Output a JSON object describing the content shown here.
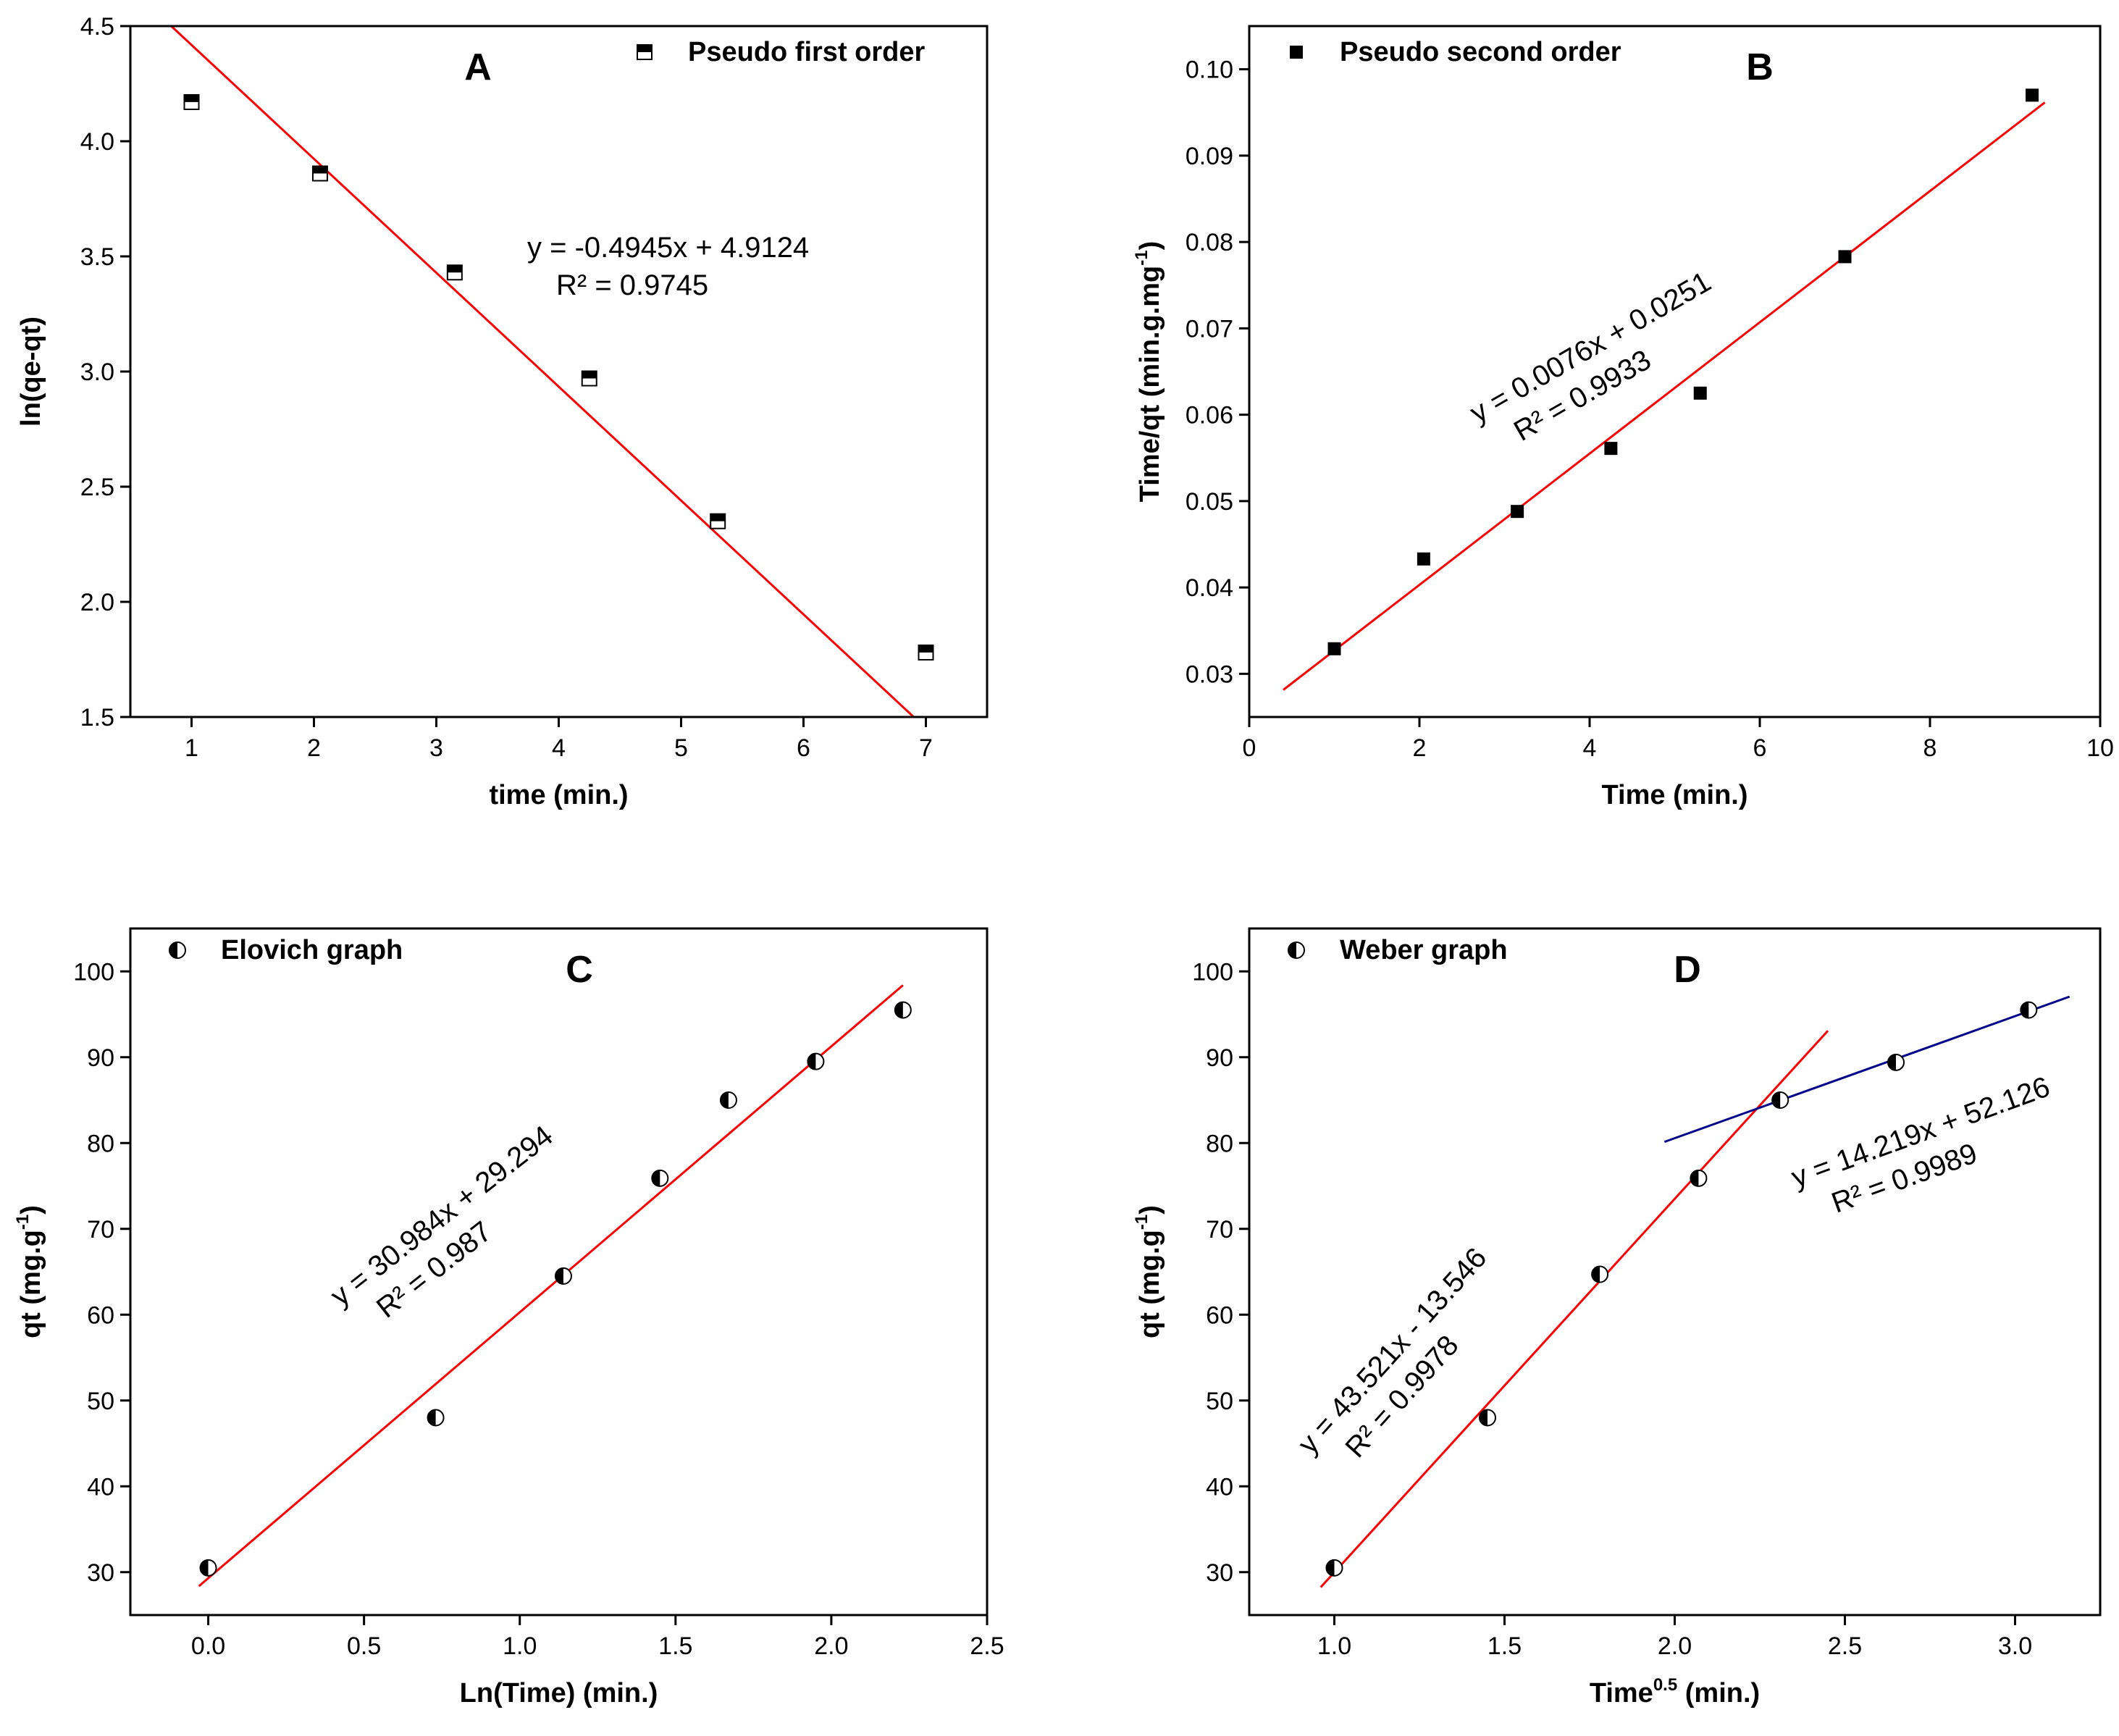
{
  "chart_data": [
    {
      "type": "scatter",
      "panel": "A",
      "xlabel": "time (min.)",
      "ylabel": "ln(qe-qt)",
      "xlim": [
        0.5,
        7.5
      ],
      "ylim": [
        1.5,
        4.5
      ],
      "xticks": [
        1,
        2,
        3,
        4,
        5,
        6,
        7
      ],
      "yticks": [
        1.5,
        2.0,
        2.5,
        3.0,
        3.5,
        4.0,
        4.5
      ],
      "xtick_labels": [
        "1",
        "2",
        "3",
        "4",
        "5",
        "6",
        "7"
      ],
      "ytick_labels": [
        "1.5",
        "2.0",
        "2.5",
        "3.0",
        "3.5",
        "4.0",
        "4.5"
      ],
      "legend": "Pseudo first order",
      "marker": "half-square",
      "series": [
        {
          "name": "Pseudo first order",
          "x": [
            1.0,
            2.05,
            3.15,
            4.25,
            5.3,
            7.0
          ],
          "y": [
            4.17,
            3.86,
            3.43,
            2.97,
            2.35,
            1.78
          ]
        }
      ],
      "fits": [
        {
          "slope": -0.4945,
          "intercept": 4.9124,
          "x_range": [
            0.78,
            7.15
          ],
          "color": "#ff0000"
        }
      ],
      "annotation": {
        "equation": "y = -0.4945x + 4.9124",
        "r2": "R² = 0.9745",
        "rotate": 0
      }
    },
    {
      "type": "scatter",
      "panel": "B",
      "xlabel": "Time (min.)",
      "ylabel": "Time/qt (min.g.mg",
      "ylabel_sup": "-1",
      "ylabel_end": ")",
      "xlim": [
        0,
        10
      ],
      "ylim": [
        0.025,
        0.105
      ],
      "xticks": [
        0,
        2,
        4,
        6,
        8,
        10
      ],
      "yticks": [
        0.03,
        0.04,
        0.05,
        0.06,
        0.07,
        0.08,
        0.09,
        0.1
      ],
      "xtick_labels": [
        "0",
        "2",
        "4",
        "6",
        "8",
        "10"
      ],
      "ytick_labels": [
        "0.03",
        "0.04",
        "0.05",
        "0.06",
        "0.07",
        "0.08",
        "0.09",
        "0.10"
      ],
      "legend": "Pseudo second order",
      "marker": "square",
      "series": [
        {
          "name": "Pseudo second order",
          "x": [
            1.0,
            2.05,
            3.15,
            4.25,
            5.3,
            7.0,
            9.2
          ],
          "y": [
            0.0329,
            0.0433,
            0.0488,
            0.0561,
            0.0625,
            0.0783,
            0.097
          ]
        }
      ],
      "fits": [
        {
          "slope": 0.0076,
          "intercept": 0.0251,
          "x_range": [
            0.4,
            9.35
          ],
          "color": "#ff0000"
        }
      ],
      "annotation": {
        "equation": "y = 0.0076x + 0.0251",
        "r2": "R² = 0.9933",
        "rotate": -30
      }
    },
    {
      "type": "scatter",
      "panel": "C",
      "xlabel": "Ln(Time) (min.)",
      "ylabel": "qt (mg.g",
      "ylabel_sup": "-1",
      "ylabel_end": ")",
      "xlim": [
        -0.25,
        2.5
      ],
      "ylim": [
        25,
        105
      ],
      "xticks": [
        0,
        0.5,
        1.0,
        1.5,
        2.0,
        2.5
      ],
      "yticks": [
        30,
        40,
        50,
        60,
        70,
        80,
        90,
        100
      ],
      "xtick_labels": [
        "0.0",
        "0.5",
        "1.0",
        "1.5",
        "2.0",
        "2.5"
      ],
      "ytick_labels": [
        "30",
        "40",
        "50",
        "60",
        "70",
        "80",
        "90",
        "100"
      ],
      "legend": "Elovich graph",
      "marker": "half-circle",
      "series": [
        {
          "name": "Elovich graph",
          "x": [
            0.0,
            0.73,
            1.14,
            1.45,
            1.67,
            1.95,
            2.23
          ],
          "y": [
            30.5,
            48.0,
            64.5,
            75.9,
            85.0,
            89.5,
            95.5
          ]
        }
      ],
      "fits": [
        {
          "slope": 30.984,
          "intercept": 29.294,
          "x_range": [
            -0.03,
            2.23
          ],
          "color": "#ff0000"
        }
      ],
      "annotation": {
        "equation": "y = 30.984x + 29.294",
        "r2": "R² = 0.987",
        "rotate": -38
      }
    },
    {
      "type": "scatter",
      "panel": "D",
      "xlabel": "Time",
      "xlabel_sup": "0.5",
      "xlabel_end": " (min.)",
      "ylabel": "qt (mg.g",
      "ylabel_sup": "-1",
      "ylabel_end": ")",
      "xlim": [
        0.75,
        3.25
      ],
      "ylim": [
        25,
        105
      ],
      "xticks": [
        1.0,
        1.5,
        2.0,
        2.5,
        3.0
      ],
      "yticks": [
        30,
        40,
        50,
        60,
        70,
        80,
        90,
        100
      ],
      "xtick_labels": [
        "1.0",
        "1.5",
        "2.0",
        "2.5",
        "3.0"
      ],
      "ytick_labels": [
        "30",
        "40",
        "50",
        "60",
        "70",
        "80",
        "90",
        "100"
      ],
      "legend": "Weber graph",
      "marker": "half-circle",
      "series": [
        {
          "name": "Weber graph",
          "x": [
            1.0,
            1.45,
            1.78,
            2.07,
            2.31,
            2.65,
            3.04
          ],
          "y": [
            30.5,
            48.0,
            64.7,
            75.9,
            85.0,
            89.4,
            95.5
          ]
        }
      ],
      "fits": [
        {
          "slope": 43.521,
          "intercept": -13.546,
          "x_range": [
            0.96,
            2.45
          ],
          "color": "#ff0000"
        },
        {
          "slope": 14.219,
          "intercept": 52.126,
          "x_range": [
            1.97,
            3.16
          ],
          "color": "#00008b"
        }
      ],
      "annotation": {
        "equation": "y = 43.521x - 13.546",
        "r2": "R² = 0.9978",
        "rotate": -48
      },
      "annotation2": {
        "equation": "y = 14.219x + 52.126",
        "r2": "R² = 0.9989",
        "rotate": -20
      }
    }
  ]
}
